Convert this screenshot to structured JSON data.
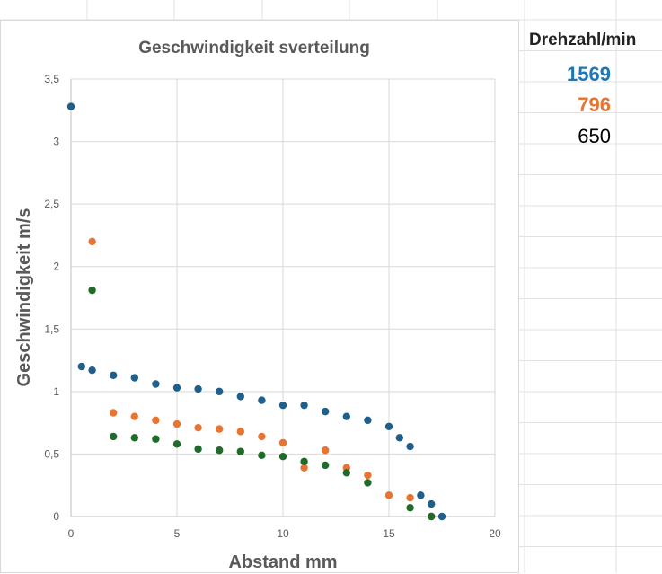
{
  "legend": {
    "header": "Drehzahl/min",
    "entries": [
      {
        "label": "1569",
        "color": "#1f77b4",
        "bold": true
      },
      {
        "label": "796",
        "color": "#e87431",
        "bold": true
      },
      {
        "label": "650",
        "color": "#000000",
        "bold": false
      }
    ]
  },
  "chart_data": {
    "type": "scatter",
    "title": "Geschwindigkeit sverteilung",
    "xlabel": "Abstand mm",
    "ylabel": "Geschwindigkeit m/s",
    "xlim": [
      0,
      20
    ],
    "ylim": [
      0,
      3.5
    ],
    "xticks": [
      "0",
      "5",
      "10",
      "15",
      "20"
    ],
    "yticks": [
      "0",
      "0,5",
      "1",
      "1,5",
      "2",
      "2,5",
      "3",
      "3,5"
    ],
    "grid": true,
    "series": [
      {
        "color": "#1f5f8b",
        "points": [
          [
            0,
            3.28
          ],
          [
            0.5,
            1.2
          ],
          [
            1,
            1.17
          ],
          [
            2,
            1.13
          ],
          [
            3,
            1.11
          ],
          [
            4,
            1.06
          ],
          [
            5,
            1.03
          ],
          [
            6,
            1.02
          ],
          [
            7,
            1.0
          ],
          [
            8,
            0.96
          ],
          [
            9,
            0.93
          ],
          [
            10,
            0.89
          ],
          [
            11,
            0.89
          ],
          [
            12,
            0.84
          ],
          [
            13,
            0.8
          ],
          [
            14,
            0.77
          ],
          [
            15,
            0.72
          ],
          [
            15.5,
            0.63
          ],
          [
            16,
            0.56
          ],
          [
            16.5,
            0.17
          ],
          [
            17,
            0.1
          ],
          [
            17.5,
            0.0
          ]
        ]
      },
      {
        "color": "#e87431",
        "points": [
          [
            1,
            2.2
          ],
          [
            2,
            0.83
          ],
          [
            3,
            0.8
          ],
          [
            4,
            0.77
          ],
          [
            5,
            0.74
          ],
          [
            6,
            0.71
          ],
          [
            7,
            0.7
          ],
          [
            8,
            0.68
          ],
          [
            9,
            0.64
          ],
          [
            10,
            0.59
          ],
          [
            11,
            0.39
          ],
          [
            12,
            0.53
          ],
          [
            13,
            0.39
          ],
          [
            14,
            0.33
          ],
          [
            15,
            0.17
          ],
          [
            16,
            0.15
          ],
          [
            17,
            0.0
          ]
        ]
      },
      {
        "color": "#1e6b2a",
        "points": [
          [
            1,
            1.81
          ],
          [
            2,
            0.64
          ],
          [
            3,
            0.63
          ],
          [
            4,
            0.62
          ],
          [
            5,
            0.58
          ],
          [
            6,
            0.54
          ],
          [
            7,
            0.53
          ],
          [
            8,
            0.52
          ],
          [
            9,
            0.49
          ],
          [
            10,
            0.48
          ],
          [
            11,
            0.44
          ],
          [
            12,
            0.41
          ],
          [
            13,
            0.35
          ],
          [
            14,
            0.27
          ],
          [
            16,
            0.07
          ],
          [
            17,
            0.0
          ]
        ]
      }
    ]
  }
}
